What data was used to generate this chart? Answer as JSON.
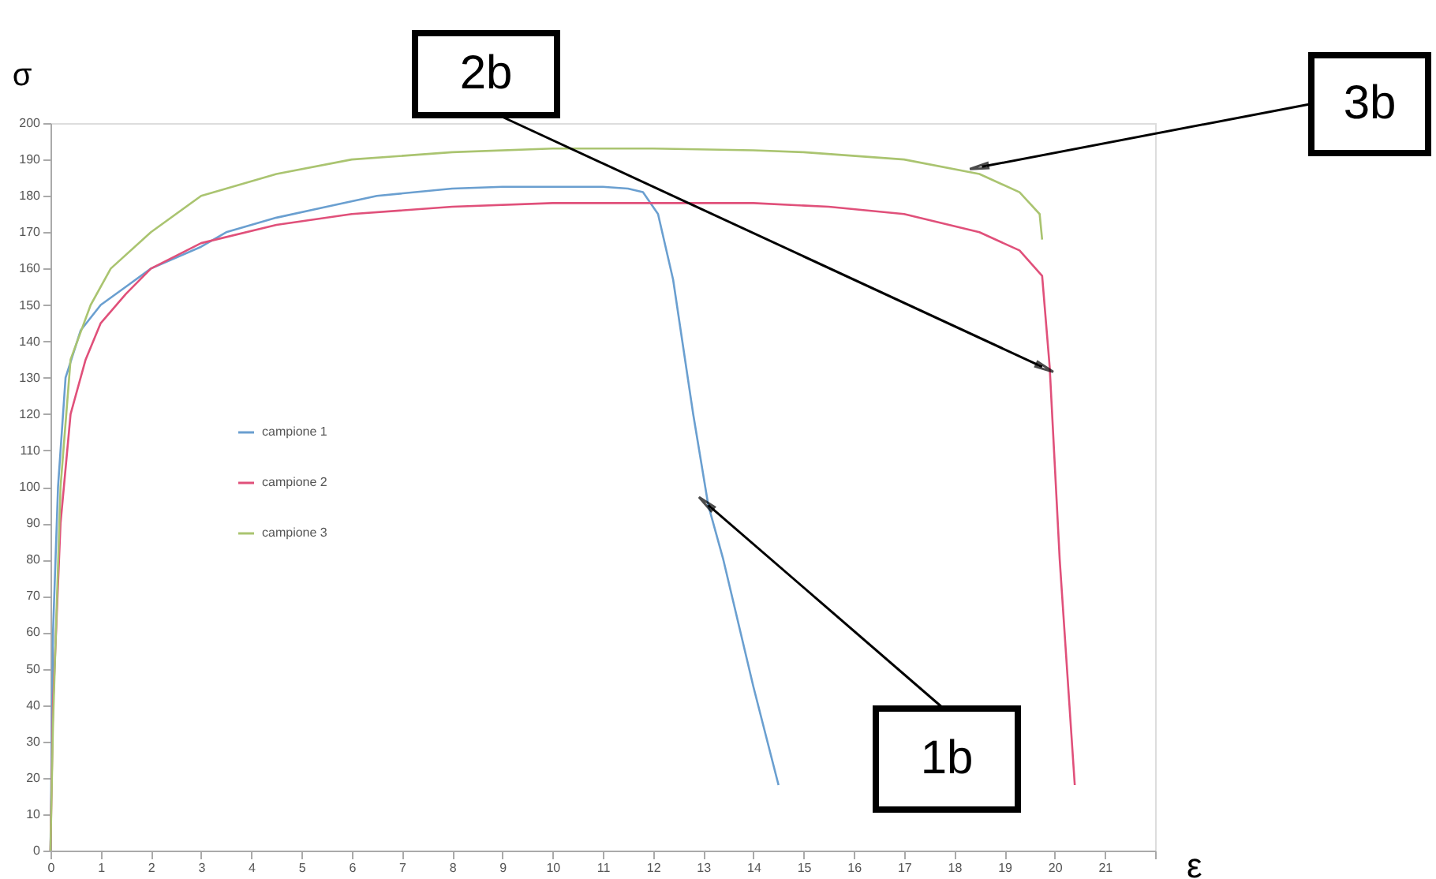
{
  "chart_data": {
    "type": "line",
    "xlabel": "ε",
    "ylabel": "σ",
    "xlim": [
      0,
      22
    ],
    "xticks": [
      0,
      1,
      2,
      3,
      4,
      5,
      6,
      7,
      8,
      9,
      10,
      11,
      12,
      13,
      14,
      15,
      16,
      17,
      18,
      19,
      20,
      21,
      {
        "value": 22,
        "label": null
      }
    ],
    "ylim": [
      0,
      200
    ],
    "yticks": [
      0,
      10,
      20,
      30,
      40,
      50,
      60,
      70,
      80,
      90,
      100,
      110,
      120,
      130,
      140,
      150,
      160,
      170,
      180,
      190,
      200
    ],
    "grid": false,
    "legend": "left",
    "marker": "none",
    "line_style": "solid",
    "series": [
      {
        "name": "campione 1",
        "color": "#6a9fd0",
        "x": [
          0,
          0.05,
          0.15,
          0.3,
          0.6,
          1,
          1.5,
          2,
          3,
          3.5,
          4.5,
          5.5,
          6.5,
          8,
          9,
          10,
          11,
          11.5,
          11.8,
          12.1,
          12.4,
          12.8,
          13.1,
          13.4,
          14,
          14.5
        ],
        "values": [
          0,
          60,
          100,
          130,
          143,
          150,
          155,
          160,
          166,
          170,
          174,
          177,
          180,
          182,
          182.5,
          182.5,
          182.5,
          182,
          181,
          175,
          157,
          120,
          95,
          80,
          45,
          18
        ]
      },
      {
        "name": "campione 2",
        "color": "#e0507a",
        "x": [
          0,
          0.05,
          0.2,
          0.4,
          0.7,
          1,
          1.5,
          2,
          3,
          4.5,
          6,
          8,
          10,
          12,
          14,
          15.5,
          17,
          18.5,
          19.3,
          19.75,
          19.9,
          20.1,
          20.4
        ],
        "values": [
          0,
          40,
          90,
          120,
          135,
          145,
          153,
          160,
          167,
          172,
          175,
          177,
          178,
          178,
          178,
          177,
          175,
          170,
          165,
          158,
          133,
          80,
          18
        ]
      },
      {
        "name": "campione 3",
        "color": "#aac470",
        "x": [
          0,
          0.05,
          0.2,
          0.4,
          0.8,
          1.2,
          2,
          3,
          4.5,
          6,
          8,
          10,
          12,
          14,
          15,
          17,
          18.5,
          19.3,
          19.7,
          19.75
        ],
        "values": [
          0,
          35,
          100,
          135,
          150,
          160,
          170,
          180,
          186,
          190,
          192,
          193,
          193,
          192.5,
          192,
          190,
          186,
          181,
          175,
          168
        ]
      }
    ],
    "annotations": [
      {
        "text": "1b",
        "x": 13.1,
        "y": 95
      },
      {
        "text": "2b",
        "x": 19.75,
        "y": 133
      },
      {
        "text": "3b",
        "x": 18.55,
        "y": 188
      }
    ]
  }
}
